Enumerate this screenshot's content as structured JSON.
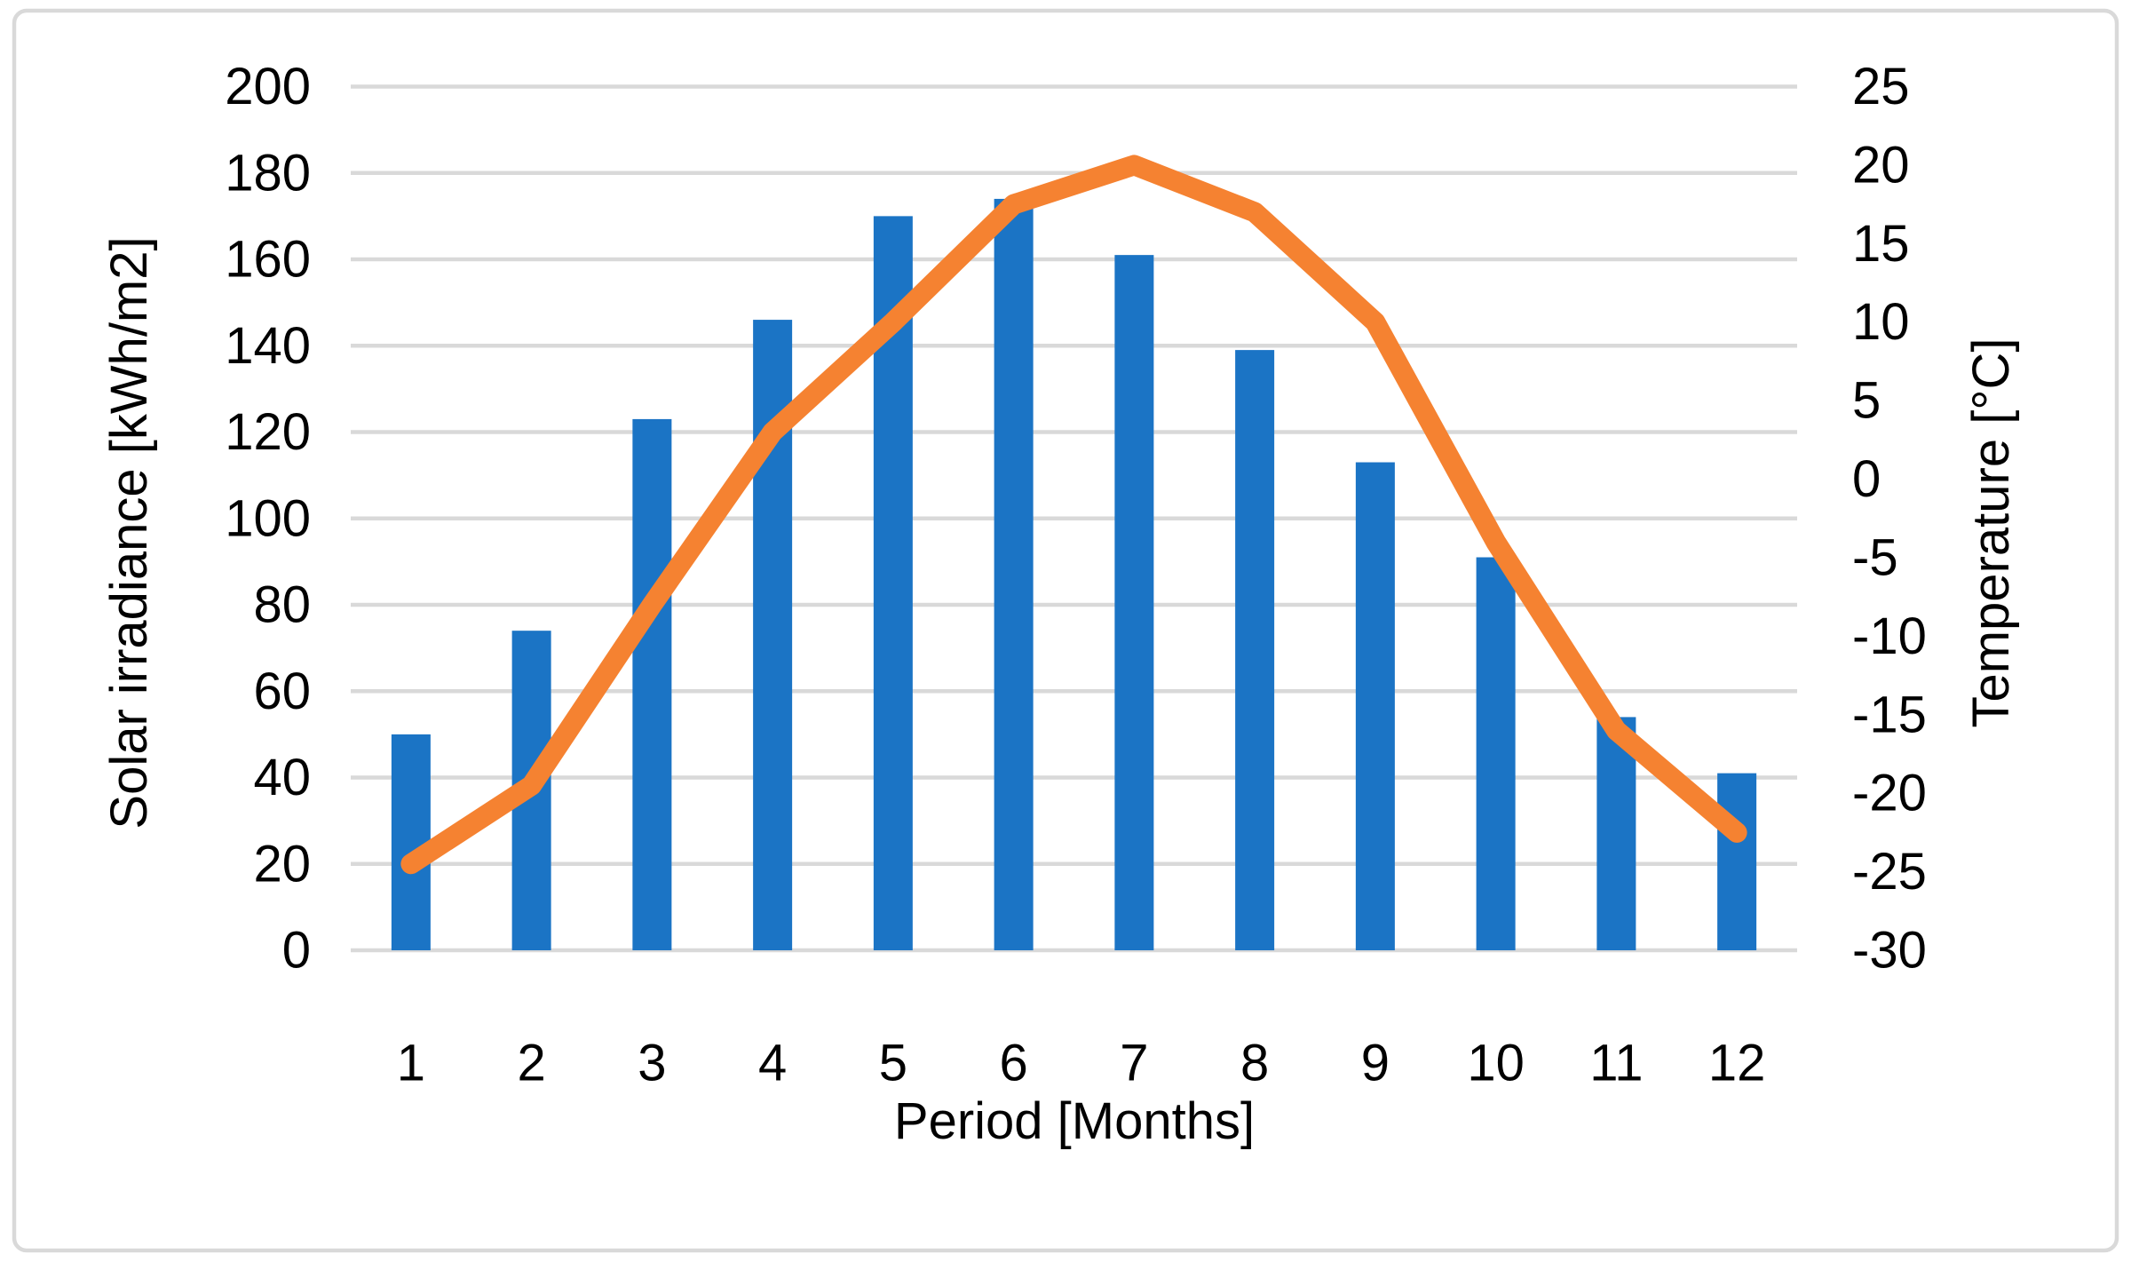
{
  "figure": {
    "background": "#FFFFFF",
    "border_color": "#D9D9D9"
  },
  "chart_data": {
    "type": "combo-bar-line",
    "categories": [
      "1",
      "2",
      "3",
      "4",
      "5",
      "6",
      "7",
      "8",
      "9",
      "10",
      "11",
      "12"
    ],
    "series": [
      {
        "name": "Solar irradiance",
        "type": "bar",
        "axis": "left",
        "color": "#1B74C5",
        "values": [
          50,
          74,
          123,
          146,
          170,
          174,
          161,
          139,
          113,
          91,
          54,
          41
        ]
      },
      {
        "name": "Temperature",
        "type": "line",
        "axis": "right",
        "color": "#F58231",
        "values": [
          -24.5,
          -19.5,
          -8,
          3,
          10,
          17.5,
          20,
          17,
          10,
          -4,
          -16,
          -22.5
        ]
      }
    ],
    "x_axis": {
      "title": "Period [Months]"
    },
    "left_axis": {
      "title": "Solar irradiance [kWh/m2]",
      "min": 0,
      "max": 200,
      "step": 20,
      "tick_labels": [
        "0",
        "20",
        "40",
        "60",
        "80",
        "100",
        "120",
        "140",
        "160",
        "180",
        "200"
      ]
    },
    "right_axis": {
      "title": "Temperature [°C]",
      "min": -30,
      "max": 25,
      "step": 5,
      "tick_labels": [
        "-30",
        "-25",
        "-20",
        "-15",
        "-10",
        "-5",
        "0",
        "5",
        "10",
        "15",
        "20",
        "25"
      ]
    },
    "gridlines": {
      "axis": "left",
      "color": "#D9D9D9"
    },
    "legend": "none"
  }
}
